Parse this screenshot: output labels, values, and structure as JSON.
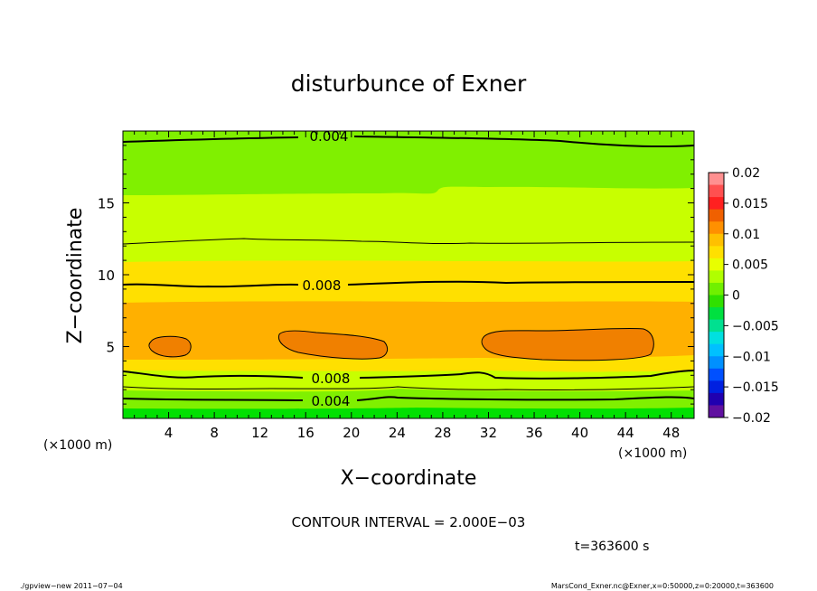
{
  "chart_data": {
    "type": "heatmap",
    "title": "disturbunce of Exner",
    "xlabel": "X−coordinate",
    "ylabel": "Z−coordinate",
    "x_unit": "(×1000 m)",
    "y_unit": "(×1000 m)",
    "xlim": [
      0,
      50
    ],
    "ylim": [
      0,
      20
    ],
    "x_ticks": [
      4,
      8,
      12,
      16,
      20,
      24,
      28,
      32,
      36,
      40,
      44,
      48
    ],
    "y_ticks": [
      5,
      10,
      15
    ],
    "colorbar": {
      "range": [
        -0.02,
        0.02
      ],
      "labels": [
        "0.02",
        "0.015",
        "0.01",
        "0.005",
        "0",
        "−0.005",
        "−0.01",
        "−0.015",
        "−0.02"
      ]
    },
    "contour_labels": [
      "0.004",
      "0.008",
      "0.008",
      "0.004"
    ],
    "contour_interval_text": "CONTOUR INTERVAL = 2.000E−03",
    "time_text": "t=363600 s",
    "footer_left": "./gpview−new   2011−07−04",
    "footer_right": "MarsCond_Exner.nc@Exner,x=0:50000,z=0:20000,t=363600",
    "vertical_profile": [
      {
        "z": 0.0,
        "value": 0.0005
      },
      {
        "z": 1.3,
        "value": 0.004
      },
      {
        "z": 3.0,
        "value": 0.008
      },
      {
        "z": 5.0,
        "value": 0.0105
      },
      {
        "z": 9.5,
        "value": 0.008
      },
      {
        "z": 15.0,
        "value": 0.0055
      },
      {
        "z": 19.5,
        "value": 0.004
      }
    ],
    "maxima_regions": [
      {
        "x": [
          2.2,
          6.1
        ],
        "z": [
          4.2,
          5.8
        ]
      },
      {
        "x": [
          13.7,
          23.0
        ],
        "z": [
          4.1,
          6.2
        ]
      },
      {
        "x": [
          31.3,
          46.0
        ],
        "z": [
          4.1,
          6.2
        ]
      }
    ],
    "colors": {
      "green": "#00e000",
      "lightgreen": "#80f000",
      "yellowgreen": "#c8ff00",
      "yellow": "#ffe000",
      "orange": "#ffb000",
      "darkorange": "#f08000",
      "red": "#ff2020"
    }
  }
}
